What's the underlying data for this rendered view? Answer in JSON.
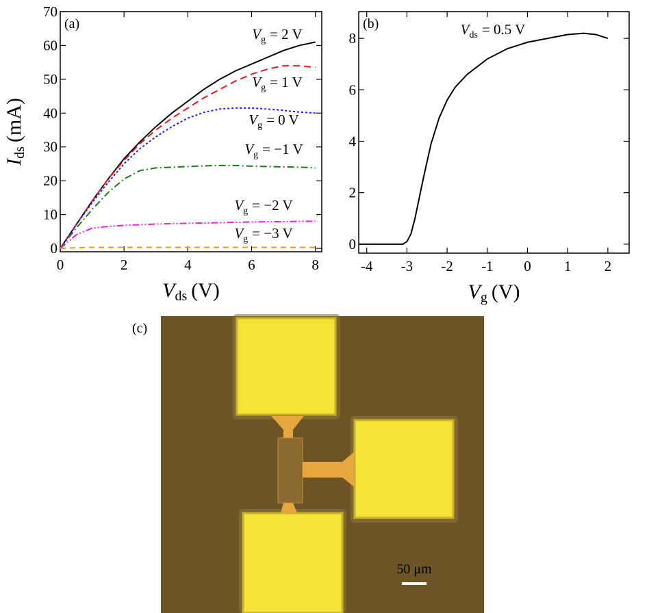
{
  "chart_data": [
    {
      "type": "line",
      "panel_label": "(a)",
      "x_label": [
        "V",
        "ds",
        "(V)"
      ],
      "y_label": [
        "I",
        "ds",
        "(mA)"
      ],
      "x": [
        0,
        0.5,
        1,
        1.5,
        2,
        2.5,
        3,
        3.5,
        4,
        4.5,
        5,
        5.5,
        6,
        6.5,
        7,
        7.5,
        8
      ],
      "xlim": [
        0,
        8.2
      ],
      "xticks": [
        0,
        2,
        4,
        6,
        8
      ],
      "ylim": [
        -1,
        70
      ],
      "yticks": [
        0,
        10,
        20,
        30,
        40,
        50,
        60,
        70
      ],
      "series": [
        {
          "name": [
            "V",
            "g",
            "= 2 V"
          ],
          "color": "#000000",
          "dash": "none",
          "values": [
            0,
            7,
            14,
            20.5,
            26.5,
            31.5,
            36,
            40,
            43.5,
            47,
            50,
            52.5,
            54.5,
            56.5,
            58.5,
            60,
            61
          ]
        },
        {
          "name": [
            "V",
            "g",
            "= 1 V"
          ],
          "color": "#e8141e",
          "dash": "10,6",
          "values": [
            0,
            7,
            14,
            20.5,
            26,
            31,
            35,
            38.5,
            41.5,
            44.5,
            47,
            49.5,
            51.5,
            53,
            54,
            54,
            53.5
          ]
        },
        {
          "name": [
            "V",
            "g",
            "= 0 V"
          ],
          "color": "#1e1ee6",
          "dash": "3,3",
          "values": [
            0,
            7,
            13.5,
            19.5,
            25,
            29.5,
            33,
            36,
            38.5,
            40.2,
            41.2,
            41.5,
            41.5,
            41.2,
            40.8,
            40.3,
            40
          ]
        },
        {
          "name": [
            "V",
            "g",
            "= −1 V"
          ],
          "color": "#1a7a1a",
          "dash": "10,4,2,4",
          "values": [
            0,
            6,
            11.5,
            16.5,
            20.5,
            23,
            23.8,
            24,
            24.2,
            24.4,
            24.5,
            24.5,
            24.3,
            24.2,
            24.1,
            24,
            23.8
          ]
        },
        {
          "name": [
            "V",
            "g",
            "= −2 V"
          ],
          "color": "#e61ee6",
          "dash": "10,3,2,3,2,3",
          "values": [
            0,
            4,
            6,
            6.5,
            6.8,
            7,
            7.2,
            7.3,
            7.4,
            7.5,
            7.6,
            7.7,
            7.8,
            7.9,
            7.9,
            8,
            8
          ]
        },
        {
          "name": [
            "V",
            "g",
            "= −3 V"
          ],
          "color": "#f0961e",
          "dash": "8,6",
          "values": [
            0,
            0.2,
            0.3,
            0.3,
            0.3,
            0.3,
            0.3,
            0.3,
            0.3,
            0.3,
            0.3,
            0.3,
            0.3,
            0.3,
            0.3,
            0.3,
            0.3
          ]
        }
      ]
    },
    {
      "type": "line",
      "panel_label": "(b)",
      "x_label": [
        "V",
        "g",
        "(V)"
      ],
      "annotation": [
        "V",
        "ds",
        "= 0.5 V"
      ],
      "x": [
        -4.2,
        -3.5,
        -3.1,
        -3.0,
        -2.9,
        -2.8,
        -2.6,
        -2.4,
        -2.2,
        -2.0,
        -1.8,
        -1.5,
        -1.0,
        -0.5,
        0,
        0.5,
        1.0,
        1.4,
        1.7,
        2.0
      ],
      "xlim": [
        -4.2,
        2.53
      ],
      "xticks": [
        -4,
        -3,
        -2,
        -1,
        0,
        1,
        2
      ],
      "ylim": [
        -0.35,
        9.04
      ],
      "yticks": [
        0,
        2,
        4,
        6,
        8
      ],
      "series": [
        {
          "color": "#000000",
          "dash": "none",
          "values": [
            0,
            0,
            0,
            0.1,
            0.4,
            1.0,
            2.5,
            3.9,
            4.9,
            5.6,
            6.1,
            6.6,
            7.2,
            7.6,
            7.85,
            8.0,
            8.15,
            8.2,
            8.15,
            8.0
          ]
        }
      ]
    }
  ],
  "photo": {
    "panel_label": "(c)",
    "scale_label": "50 μm"
  }
}
